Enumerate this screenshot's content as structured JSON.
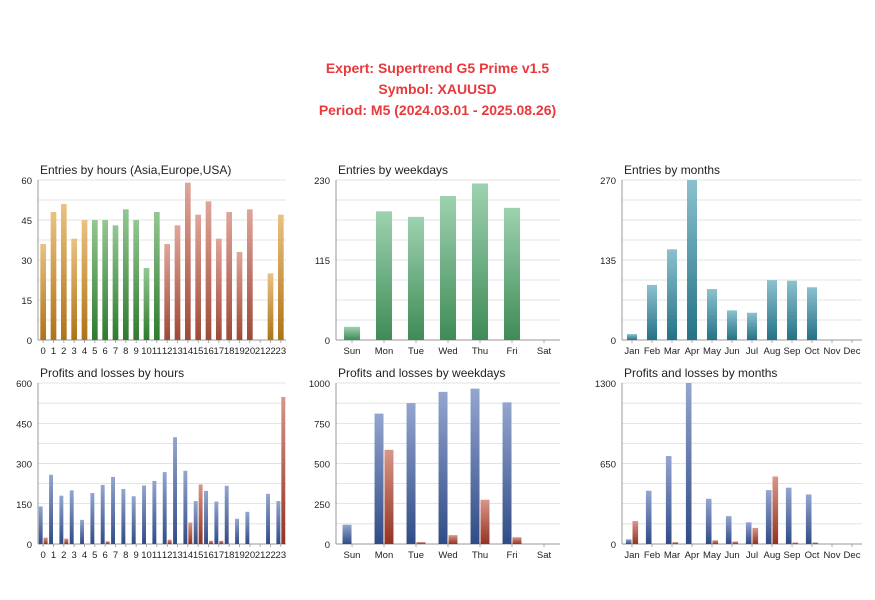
{
  "header": {
    "line1": "Expert: Supertrend G5 Prime v1.5",
    "line2": "Symbol: XAUUSD",
    "line3": "Period: M5 (2024.03.01 - 2025.08.26)"
  },
  "colors": {
    "title_red": "#e8393c",
    "asia_orange": "#d9901c",
    "europe_green": "#3a9a3a",
    "usa_red": "#c75b45",
    "weekday_green": "#4fae6e",
    "month_teal": "#2d8fa8",
    "profit_blue": "#3d5ea8",
    "loss_red": "#b8402a"
  },
  "chart_data": [
    {
      "id": "entries-hours",
      "type": "bar",
      "title": "Entries by hours (Asia,Europe,USA)",
      "categories": [
        "0",
        "1",
        "2",
        "3",
        "4",
        "5",
        "6",
        "7",
        "8",
        "9",
        "10",
        "11",
        "12",
        "13",
        "14",
        "15",
        "16",
        "17",
        "18",
        "19",
        "20",
        "21",
        "22",
        "23"
      ],
      "values": [
        36,
        48,
        51,
        38,
        45,
        45,
        45,
        43,
        49,
        45,
        27,
        48,
        36,
        43,
        59,
        47,
        52,
        38,
        48,
        33,
        49,
        0,
        25,
        47
      ],
      "groups": [
        "asia",
        "asia",
        "asia",
        "asia",
        "asia",
        "europe",
        "europe",
        "europe",
        "europe",
        "europe",
        "europe",
        "europe",
        "usa",
        "usa",
        "usa",
        "usa",
        "usa",
        "usa",
        "usa",
        "usa",
        "usa",
        "asia",
        "asia",
        "asia"
      ],
      "yticks": [
        0,
        15,
        30,
        45,
        60
      ],
      "ylim": [
        0,
        60
      ]
    },
    {
      "id": "entries-weekdays",
      "type": "bar",
      "title": "Entries by weekdays",
      "categories": [
        "Sun",
        "Mon",
        "Tue",
        "Wed",
        "Thu",
        "Fri",
        "Sat"
      ],
      "values": [
        19,
        185,
        177,
        207,
        225,
        190,
        0
      ],
      "yticks": [
        0,
        115,
        230
      ],
      "ylim": [
        0,
        230
      ]
    },
    {
      "id": "entries-months",
      "type": "bar",
      "title": "Entries by months",
      "categories": [
        "Jan",
        "Feb",
        "Mar",
        "Apr",
        "May",
        "Jun",
        "Jul",
        "Aug",
        "Sep",
        "Oct",
        "Nov",
        "Dec"
      ],
      "values": [
        10,
        93,
        153,
        270,
        86,
        50,
        46,
        101,
        100,
        89,
        0,
        0
      ],
      "yticks": [
        0,
        135,
        270
      ],
      "ylim": [
        0,
        270
      ]
    },
    {
      "id": "pl-hours",
      "type": "bar",
      "title": "Profits and losses by hours",
      "categories": [
        "0",
        "1",
        "2",
        "3",
        "4",
        "5",
        "6",
        "7",
        "8",
        "9",
        "10",
        "11",
        "12",
        "13",
        "14",
        "15",
        "16",
        "17",
        "18",
        "19",
        "20",
        "21",
        "22",
        "23"
      ],
      "series": [
        {
          "values": [
            140,
            258,
            180,
            200,
            90,
            190,
            220,
            250,
            205,
            178,
            218,
            235,
            268,
            398,
            273,
            160,
            198,
            158,
            217,
            94,
            120,
            0,
            187,
            160
          ]
        },
        {
          "values": [
            24,
            0,
            20,
            0,
            0,
            0,
            10,
            0,
            0,
            0,
            0,
            0,
            16,
            0,
            80,
            222,
            12,
            12,
            0,
            0,
            0,
            0,
            0,
            548
          ]
        }
      ],
      "yticks": [
        0,
        150,
        300,
        450,
        600
      ],
      "ylim": [
        0,
        600
      ]
    },
    {
      "id": "pl-weekdays",
      "type": "bar",
      "title": "Profits and losses by weekdays",
      "categories": [
        "Sun",
        "Mon",
        "Tue",
        "Wed",
        "Thu",
        "Fri",
        "Sat"
      ],
      "series": [
        {
          "values": [
            120,
            810,
            875,
            945,
            965,
            880,
            0
          ]
        },
        {
          "values": [
            0,
            585,
            12,
            55,
            275,
            42,
            0
          ]
        }
      ],
      "yticks": [
        0,
        250,
        500,
        750,
        1000
      ],
      "ylim": [
        0,
        1000
      ]
    },
    {
      "id": "pl-months",
      "type": "bar",
      "title": "Profits and losses by months",
      "categories": [
        "Jan",
        "Feb",
        "Mar",
        "Apr",
        "May",
        "Jun",
        "Jul",
        "Aug",
        "Sep",
        "Oct",
        "Nov",
        "Dec"
      ],
      "series": [
        {
          "values": [
            38,
            430,
            710,
            1300,
            365,
            225,
            175,
            435,
            455,
            400,
            0,
            0
          ]
        },
        {
          "values": [
            185,
            0,
            15,
            0,
            30,
            20,
            130,
            545,
            12,
            12,
            0,
            0
          ]
        }
      ],
      "yticks": [
        0,
        650,
        1300
      ],
      "ylim": [
        0,
        1300
      ]
    }
  ]
}
